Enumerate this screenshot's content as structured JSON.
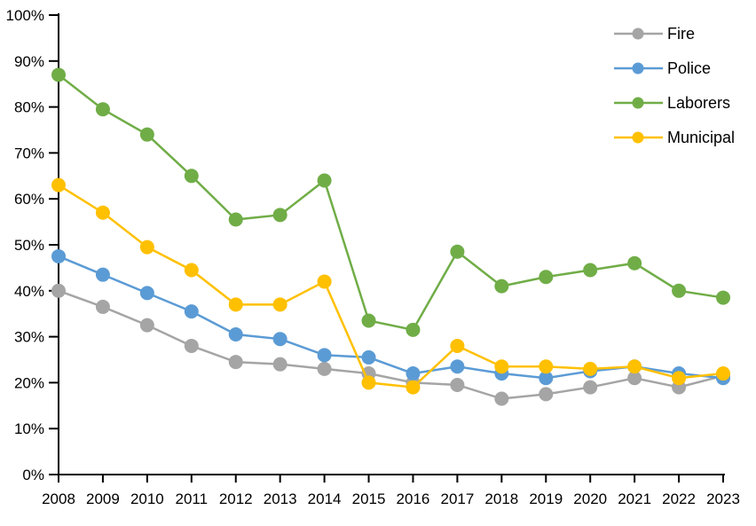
{
  "chart_data": {
    "type": "line",
    "title": "",
    "xlabel": "",
    "ylabel": "",
    "grid": false,
    "legend_position": "top-right",
    "ylim": [
      0,
      100
    ],
    "ytick_step": 10,
    "ytick_suffix": "%",
    "x": [
      "2008",
      "2009",
      "2010",
      "2011",
      "2012",
      "2013",
      "2014",
      "2015",
      "2016",
      "2017",
      "2018",
      "2019",
      "2020",
      "2021",
      "2022",
      "2023"
    ],
    "series": [
      {
        "name": "Fire",
        "color": "#A5A5A5",
        "values": [
          40,
          36.5,
          32.5,
          28,
          24.5,
          24,
          23,
          22,
          20,
          19.5,
          16.5,
          17.5,
          19,
          21,
          19,
          21.5
        ]
      },
      {
        "name": "Police",
        "color": "#5B9BD5",
        "values": [
          47.5,
          43.5,
          39.5,
          35.5,
          30.5,
          29.5,
          26,
          25.5,
          22,
          23.5,
          22,
          21,
          22.5,
          23.5,
          22,
          21
        ]
      },
      {
        "name": "Laborers",
        "color": "#70AD47",
        "values": [
          87,
          79.5,
          74,
          65,
          55.5,
          56.5,
          64,
          33.5,
          31.5,
          48.5,
          41,
          43,
          44.5,
          46,
          40,
          38.5
        ]
      },
      {
        "name": "Municipal",
        "color": "#FFC000",
        "values": [
          63,
          57,
          49.5,
          44.5,
          37,
          37,
          42,
          20,
          19,
          28,
          23.5,
          23.5,
          23,
          23.5,
          21,
          22
        ]
      }
    ],
    "axis_color": "#000000",
    "tick_label_color": "#000000"
  }
}
